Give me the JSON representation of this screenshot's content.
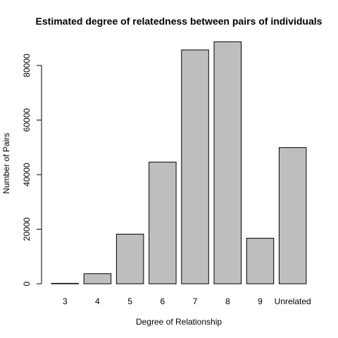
{
  "chart_data": {
    "type": "bar",
    "title": "Estimated degree of relatedness between pairs of individuals",
    "xlabel": "Degree of Relationship",
    "ylabel": "Number of Pairs",
    "categories": [
      "3",
      "4",
      "5",
      "6",
      "7",
      "8",
      "9",
      "Unrelated"
    ],
    "values": [
      150,
      3700,
      18200,
      44600,
      85700,
      88700,
      16700,
      49900
    ],
    "ylim": [
      0,
      88700
    ],
    "yticks": [
      0,
      20000,
      40000,
      60000,
      80000
    ],
    "grid": false,
    "bar_color": "#bebebe",
    "edge_color": "#000000"
  }
}
